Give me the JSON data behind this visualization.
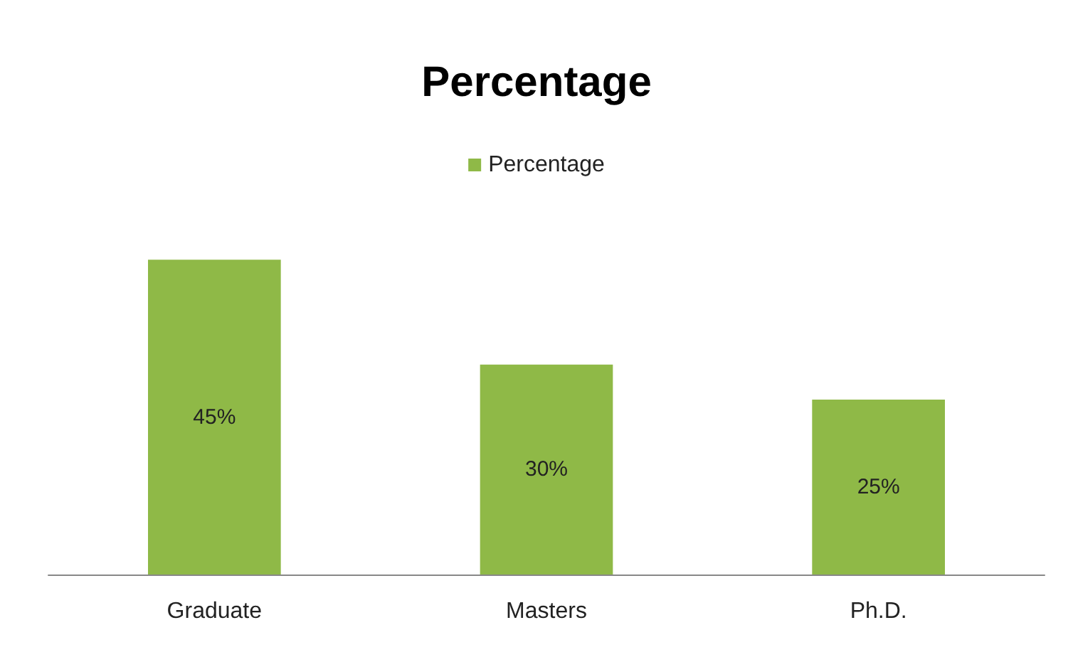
{
  "chart_data": {
    "type": "bar",
    "title": "Percentage",
    "categories": [
      "Graduate",
      "Masters",
      "Ph.D."
    ],
    "series": [
      {
        "name": "Percentage",
        "color": "#8fb947",
        "values": [
          45,
          30,
          25
        ],
        "value_labels": [
          "45%",
          "30%",
          "25%"
        ]
      }
    ],
    "legend": "top",
    "grid": false
  }
}
